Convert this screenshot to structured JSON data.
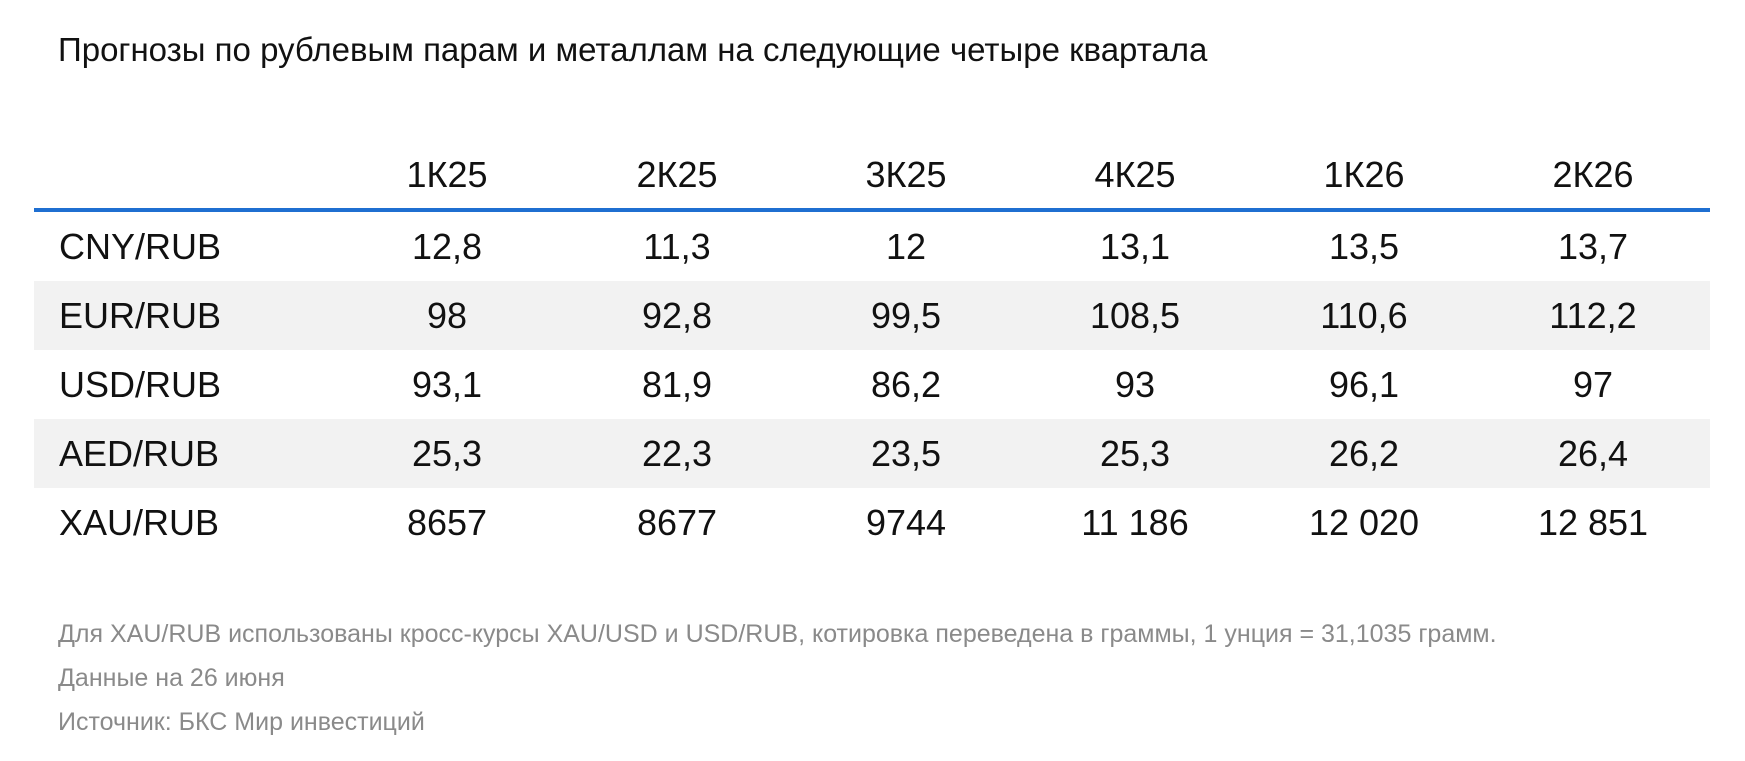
{
  "title": "Прогнозы по рублевым парам и металлам на следующие четыре квартала",
  "accent_color": "#1f6fd1",
  "chart_data": {
    "type": "table",
    "title": "Прогнозы по рублевым парам и металлам на следующие четыре квартала",
    "columns": [
      "1К25",
      "2К25",
      "3К25",
      "4К25",
      "1К26",
      "2К26"
    ],
    "rows": [
      {
        "label": "CNY/RUB",
        "values": [
          "12,8",
          "11,3",
          "12",
          "13,1",
          "13,5",
          "13,7"
        ]
      },
      {
        "label": "EUR/RUB",
        "values": [
          "98",
          "92,8",
          "99,5",
          "108,5",
          "110,6",
          "112,2"
        ]
      },
      {
        "label": "USD/RUB",
        "values": [
          "93,1",
          "81,9",
          "86,2",
          "93",
          "96,1",
          "97"
        ]
      },
      {
        "label": "AED/RUB",
        "values": [
          "25,3",
          "22,3",
          "23,5",
          "25,3",
          "26,2",
          "26,4"
        ]
      },
      {
        "label": "XAU/RUB",
        "values": [
          "8657",
          "8677",
          "9744",
          "11 186",
          "12 020",
          "12 851"
        ]
      }
    ]
  },
  "notes": {
    "footnote": "Для XAU/RUB использованы кросс-курсы XAU/USD и USD/RUB, котировка переведена в граммы, 1 унция = 31,1035 грамм.",
    "date": "Данные на 26 июня",
    "source": "Источник: БКС Мир инвестиций"
  }
}
